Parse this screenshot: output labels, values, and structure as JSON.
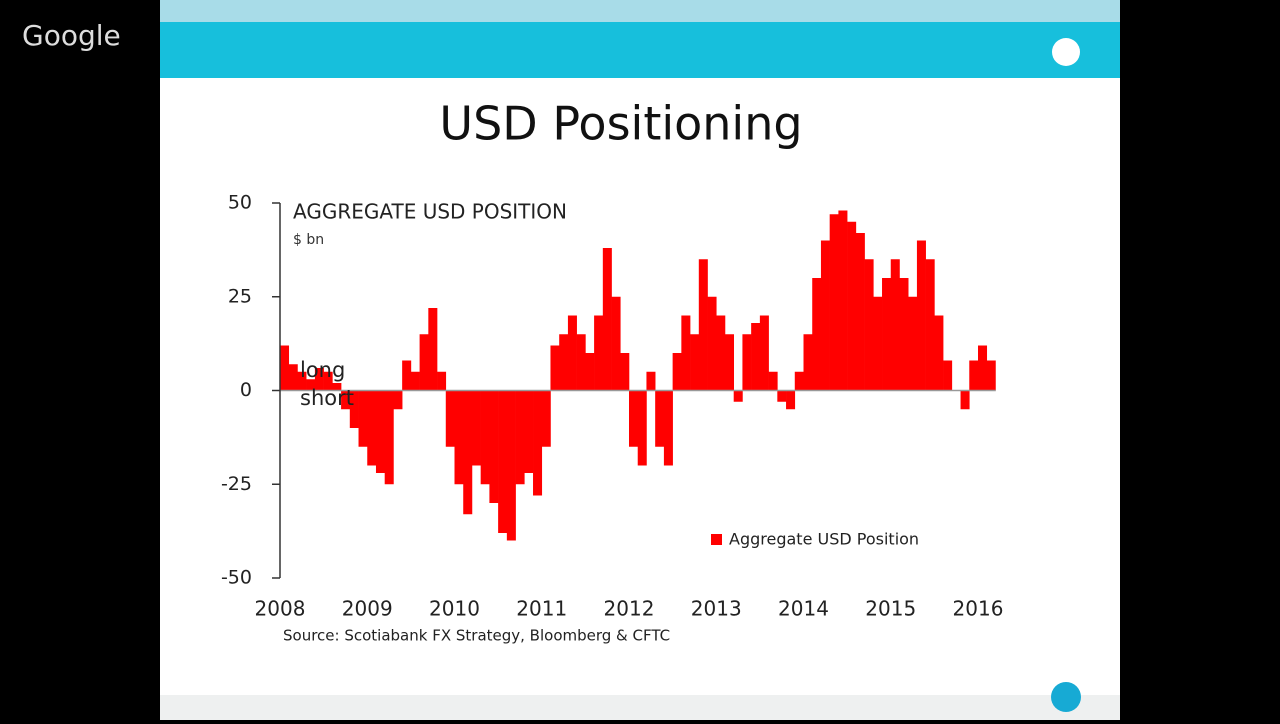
{
  "branding": "Google",
  "slide": {
    "title": "USD Positioning",
    "source": "Source: Scotiabank FX Strategy, Bloomberg & CFTC"
  },
  "chart_data": {
    "type": "bar",
    "title": "AGGREGATE USD POSITION",
    "subtitle": "$ bn",
    "annotations": [
      "long",
      "short"
    ],
    "series": [
      {
        "name": "Aggregate USD Position",
        "color": "#ff0000",
        "x": [
          2008.0,
          2008.1,
          2008.2,
          2008.3,
          2008.4,
          2008.5,
          2008.6,
          2008.7,
          2008.8,
          2008.9,
          2009.0,
          2009.1,
          2009.2,
          2009.3,
          2009.4,
          2009.5,
          2009.6,
          2009.7,
          2009.8,
          2009.9,
          2010.0,
          2010.1,
          2010.2,
          2010.3,
          2010.4,
          2010.5,
          2010.6,
          2010.7,
          2010.8,
          2010.9,
          2011.0,
          2011.1,
          2011.2,
          2011.3,
          2011.4,
          2011.5,
          2011.6,
          2011.7,
          2011.8,
          2011.9,
          2012.0,
          2012.1,
          2012.2,
          2012.3,
          2012.4,
          2012.5,
          2012.6,
          2012.7,
          2012.8,
          2012.9,
          2013.0,
          2013.1,
          2013.2,
          2013.3,
          2013.4,
          2013.5,
          2013.6,
          2013.7,
          2013.8,
          2013.9,
          2014.0,
          2014.1,
          2014.2,
          2014.3,
          2014.4,
          2014.5,
          2014.6,
          2014.7,
          2014.8,
          2014.9,
          2015.0,
          2015.1,
          2015.2,
          2015.3,
          2015.4,
          2015.5,
          2015.6,
          2015.7,
          2015.8,
          2015.9,
          2016.0,
          2016.1
        ],
        "values": [
          12,
          7,
          5,
          3,
          6,
          5,
          2,
          -5,
          -10,
          -15,
          -20,
          -22,
          -25,
          -5,
          8,
          5,
          15,
          22,
          5,
          -15,
          -25,
          -33,
          -20,
          -25,
          -30,
          -38,
          -40,
          -25,
          -22,
          -28,
          -15,
          12,
          15,
          20,
          15,
          10,
          20,
          38,
          25,
          10,
          -15,
          -20,
          5,
          -15,
          -20,
          10,
          20,
          15,
          35,
          25,
          20,
          15,
          -3,
          15,
          18,
          20,
          5,
          -3,
          -5,
          5,
          15,
          30,
          40,
          47,
          48,
          45,
          42,
          35,
          25,
          30,
          35,
          30,
          25,
          40,
          35,
          20,
          8,
          0,
          -5,
          8,
          12,
          8
        ]
      }
    ],
    "xlim": [
      2008,
      2016
    ],
    "xticks": [
      2008,
      2009,
      2010,
      2011,
      2012,
      2013,
      2014,
      2015,
      2016
    ],
    "ylim": [
      -50,
      50
    ],
    "yticks": [
      -50,
      -25,
      0,
      25,
      50
    ],
    "grid": false,
    "legend": "lower right"
  }
}
